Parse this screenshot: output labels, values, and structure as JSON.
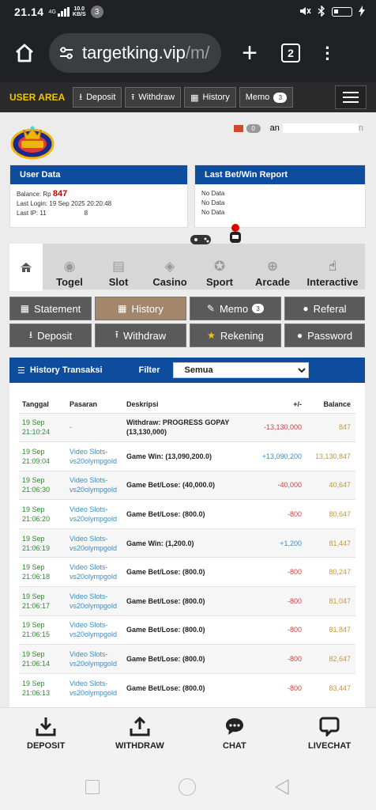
{
  "status_bar": {
    "time": "21.14",
    "network": "4G",
    "speed_value": "10.0",
    "speed_unit": "KB/S",
    "notification_count": "3"
  },
  "browser": {
    "url_host": "targetking.vip",
    "url_path": "/m/",
    "tab_count": "2"
  },
  "user_area": {
    "title": "USER AREA",
    "buttons": [
      "Deposit",
      "Withdraw",
      "History",
      "Memo"
    ],
    "memo_count": "3"
  },
  "header": {
    "message_count": "0",
    "username_prefix": "an",
    "username_suffix": "n"
  },
  "user_data": {
    "title": "User Data",
    "balance_label": "Balance: Rp",
    "balance_value": "847",
    "last_login": "Last Login: 19 Sep 2025 20:20:48",
    "last_ip_prefix": "Last IP: 11",
    "last_ip_suffix": "8"
  },
  "last_bet": {
    "title": "Last Bet/Win Report",
    "rows": [
      "No Data",
      "No Data",
      "No Data"
    ]
  },
  "game_tabs": [
    "Togel",
    "Slot",
    "Casino",
    "Sport",
    "Arcade",
    "Interactive"
  ],
  "actions": {
    "statement": "Statement",
    "history": "History",
    "memo": "Memo",
    "memo_count": "3",
    "referal": "Referal",
    "deposit": "Deposit",
    "withdraw": "Withdraw",
    "rekening": "Rekening",
    "password": "Password"
  },
  "history": {
    "title": "History Transaksi",
    "filter_label": "Filter",
    "filter_value": "Semua",
    "columns": [
      "Tanggal",
      "Pasaran",
      "Deskripsi",
      "+/-",
      "Balance"
    ],
    "rows": [
      {
        "date": "19 Sep",
        "time": "21:10:24",
        "pasaran": "-",
        "pasaran2": "",
        "desc": "Withdraw: PROGRESS GOPAY",
        "desc2": "(13,130,000)",
        "amount": "-13,130,000",
        "sign": "neg",
        "balance": "847"
      },
      {
        "date": "19 Sep",
        "time": "21:09:04",
        "pasaran": "Video Slots-",
        "pasaran2": "vs20olympgold",
        "desc": "Game Win: (13,090,200.0)",
        "desc2": "",
        "amount": "+13,090,200",
        "sign": "pos",
        "balance": "13,130,847"
      },
      {
        "date": "19 Sep",
        "time": "21:06:30",
        "pasaran": "Video Slots-",
        "pasaran2": "vs20olympgold",
        "desc": "Game Bet/Lose: (40,000.0)",
        "desc2": "",
        "amount": "-40,000",
        "sign": "neg",
        "balance": "40,647"
      },
      {
        "date": "19 Sep",
        "time": "21:06:20",
        "pasaran": "Video Slots-",
        "pasaran2": "vs20olympgold",
        "desc": "Game Bet/Lose: (800.0)",
        "desc2": "",
        "amount": "-800",
        "sign": "neg",
        "balance": "80,647"
      },
      {
        "date": "19 Sep",
        "time": "21:06:19",
        "pasaran": "Video Slots-",
        "pasaran2": "vs20olympgold",
        "desc": "Game Win: (1,200.0)",
        "desc2": "",
        "amount": "+1,200",
        "sign": "pos",
        "balance": "81,447"
      },
      {
        "date": "19 Sep",
        "time": "21:06:18",
        "pasaran": "Video Slots-",
        "pasaran2": "vs20olympgold",
        "desc": "Game Bet/Lose: (800.0)",
        "desc2": "",
        "amount": "-800",
        "sign": "neg",
        "balance": "80,247"
      },
      {
        "date": "19 Sep",
        "time": "21:06:17",
        "pasaran": "Video Slots-",
        "pasaran2": "vs20olympgold",
        "desc": "Game Bet/Lose: (800.0)",
        "desc2": "",
        "amount": "-800",
        "sign": "neg",
        "balance": "81,047"
      },
      {
        "date": "19 Sep",
        "time": "21:06:15",
        "pasaran": "Video Slots-",
        "pasaran2": "vs20olympgold",
        "desc": "Game Bet/Lose: (800.0)",
        "desc2": "",
        "amount": "-800",
        "sign": "neg",
        "balance": "81,847"
      },
      {
        "date": "19 Sep",
        "time": "21:06:14",
        "pasaran": "Video Slots-",
        "pasaran2": "vs20olympgold",
        "desc": "Game Bet/Lose: (800.0)",
        "desc2": "",
        "amount": "-800",
        "sign": "neg",
        "balance": "82,647"
      },
      {
        "date": "19 Sep",
        "time": "21:06:13",
        "pasaran": "Video Slots-",
        "pasaran2": "vs20olympgold",
        "desc": "Game Bet/Lose: (800.0)",
        "desc2": "",
        "amount": "-800",
        "sign": "neg",
        "balance": "83,447"
      }
    ]
  },
  "bottom_nav": [
    "DEPOSIT",
    "WITHDRAW",
    "CHAT",
    "LIVECHAT"
  ],
  "colors": {
    "header_blue": "#0e4c9e",
    "user_area_gold": "#f4c400",
    "active_action": "#a3876c",
    "negative": "#d04040",
    "positive": "#3a8ec2",
    "balance": "#c49a3a",
    "date": "#2e8b2e"
  }
}
